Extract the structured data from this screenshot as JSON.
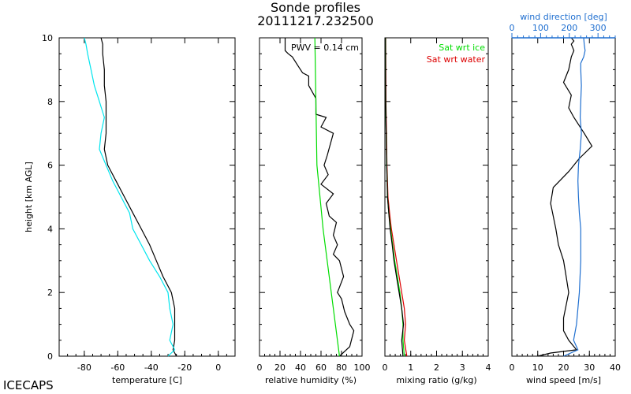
{
  "title": "Sonde profiles",
  "subtitle": "20111217.232500",
  "footer_label": "ICECAPS",
  "colors": {
    "black": "#000000",
    "cyan": "#00e5ee",
    "green": "#00dd00",
    "red": "#dd0000",
    "yellow": "#ffff00",
    "blue": "#1f6fd0"
  },
  "chart_data": [
    {
      "type": "line",
      "xlabel": "temperature [C]",
      "ylabel": "height [km AGL]",
      "xlim": [
        -95,
        10
      ],
      "ylim": [
        0,
        10
      ],
      "xticks": [
        -80,
        -60,
        -40,
        -20,
        0
      ],
      "yticks": [
        0,
        2,
        4,
        6,
        8,
        10
      ],
      "series": [
        {
          "color": "#000000",
          "x": [
            -25,
            -27,
            -26,
            -26,
            -26,
            -28,
            -33,
            -37,
            -41,
            -46,
            -51,
            -56,
            -61,
            -66,
            -68,
            -67,
            -67,
            -67,
            -68,
            -68,
            -69,
            -69,
            -70
          ],
          "y": [
            0,
            0.2,
            0.5,
            1.0,
            1.5,
            2.0,
            2.5,
            3.0,
            3.5,
            4.0,
            4.5,
            5.0,
            5.5,
            6.0,
            6.5,
            7.0,
            7.5,
            8.0,
            8.5,
            9.0,
            9.5,
            9.8,
            10.0
          ]
        },
        {
          "color": "#00e5ee",
          "x": [
            -30,
            -26,
            -29,
            -27,
            -29,
            -30,
            -35,
            -41,
            -46,
            -51,
            -53,
            -58,
            -63,
            -67,
            -71,
            -70,
            -68,
            -71,
            -74,
            -76,
            -78,
            -79,
            -80
          ],
          "y": [
            0,
            0.2,
            0.5,
            1.0,
            1.5,
            2.0,
            2.5,
            3.0,
            3.5,
            4.0,
            4.5,
            5.0,
            5.5,
            6.0,
            6.5,
            7.0,
            7.5,
            8.0,
            8.5,
            9.0,
            9.5,
            9.8,
            10.0
          ]
        }
      ]
    },
    {
      "type": "line",
      "xlabel": "relative humidity (%)",
      "xlim": [
        0,
        100
      ],
      "ylim": [
        0,
        10
      ],
      "xticks": [
        0,
        20,
        40,
        60,
        80,
        100
      ],
      "annotation": "PWV = 0.14 cm",
      "series": [
        {
          "color": "#000000",
          "x": [
            78,
            88,
            92,
            88,
            83,
            80,
            76,
            82,
            78,
            72,
            76,
            72,
            75,
            68,
            65,
            72,
            60,
            67,
            63,
            66,
            72,
            60,
            65,
            55,
            55,
            55,
            48,
            48,
            42,
            38,
            32,
            28,
            25,
            25,
            25
          ],
          "y": [
            0,
            0.3,
            0.8,
            1.0,
            1.4,
            1.8,
            2.0,
            2.5,
            3.0,
            3.2,
            3.5,
            3.8,
            4.2,
            4.4,
            4.8,
            5.1,
            5.4,
            5.7,
            6.0,
            6.3,
            7.0,
            7.2,
            7.5,
            7.6,
            7.9,
            8.1,
            8.5,
            8.8,
            8.9,
            9.1,
            9.4,
            9.5,
            9.6,
            9.8,
            10.0
          ]
        },
        {
          "color": "#00dd00",
          "x": [
            78,
            74,
            70,
            66,
            62,
            59,
            56,
            55,
            54
          ],
          "y": [
            0,
            1,
            2,
            3,
            4,
            5,
            6,
            8,
            10
          ]
        }
      ]
    },
    {
      "type": "line",
      "xlabel": "mixing ratio (g/kg)",
      "xlim": [
        0,
        4
      ],
      "ylim": [
        0,
        10
      ],
      "xticks": [
        0,
        1,
        2,
        3,
        4
      ],
      "legend": [
        "Sat wrt ice",
        "Sat wrt water"
      ],
      "series": [
        {
          "name": "Sat wrt water",
          "color": "#dd0000",
          "x": [
            0.85,
            0.75,
            0.8,
            0.75,
            0.65,
            0.55,
            0.45,
            0.35,
            0.25,
            0.18,
            0.12,
            0.08,
            0.06,
            0.04,
            0.03
          ],
          "y": [
            0,
            0.5,
            1.0,
            1.5,
            2.0,
            2.5,
            3.0,
            3.5,
            4.0,
            4.5,
            5.0,
            6.0,
            7.0,
            8.0,
            10.0
          ]
        },
        {
          "name": "Sat wrt ice",
          "color": "#00dd00",
          "x": [
            0.75,
            0.7,
            0.7,
            0.65,
            0.58,
            0.48,
            0.38,
            0.3,
            0.22,
            0.15,
            0.1,
            0.07,
            0.05,
            0.03,
            0.02
          ],
          "y": [
            0,
            0.5,
            1.0,
            1.5,
            2.0,
            2.5,
            3.0,
            3.5,
            4.0,
            4.5,
            5.0,
            6.0,
            7.0,
            8.0,
            10.0
          ]
        },
        {
          "color": "#000000",
          "x": [
            0.7,
            0.65,
            0.72,
            0.65,
            0.55,
            0.45,
            0.35,
            0.28,
            0.2,
            0.15,
            0.1,
            0.07,
            0.05,
            0.03,
            0.02
          ],
          "y": [
            0,
            0.5,
            1.0,
            1.5,
            2.0,
            2.5,
            3.0,
            3.5,
            4.0,
            4.5,
            5.0,
            6.0,
            7.0,
            8.0,
            10.0
          ]
        }
      ]
    },
    {
      "type": "line",
      "xlabel": "wind speed [m/s]",
      "xlim": [
        0,
        40
      ],
      "ylim": [
        0,
        10
      ],
      "xticks": [
        0,
        10,
        20,
        30,
        40
      ],
      "x2label": "wind direction [deg]",
      "x2lim": [
        0,
        360
      ],
      "x2ticks": [
        0,
        100,
        200,
        300
      ],
      "series": [
        {
          "color": "#000000",
          "x": [
            10,
            15,
            25,
            22,
            20,
            20,
            22,
            21,
            20,
            18,
            17,
            15,
            16,
            22,
            26,
            31,
            28,
            24,
            22,
            23,
            20,
            22,
            23,
            24,
            23,
            24,
            23
          ],
          "y": [
            0,
            0.1,
            0.2,
            0.5,
            0.8,
            1.2,
            2.0,
            2.5,
            3.0,
            3.5,
            4.0,
            4.8,
            5.3,
            5.8,
            6.2,
            6.6,
            7.0,
            7.5,
            7.8,
            8.2,
            8.6,
            9.0,
            9.4,
            9.6,
            9.8,
            9.9,
            10.0
          ]
        },
        {
          "color": "#1f6fd0",
          "x": [
            180,
            230,
            215,
            225,
            235,
            240,
            240,
            235,
            232,
            230,
            232,
            238,
            242,
            238,
            240,
            242,
            240,
            240,
            250,
            255,
            252,
            250
          ],
          "y": [
            0,
            0.2,
            0.5,
            1.0,
            2.0,
            3.0,
            4.0,
            4.5,
            5.0,
            5.5,
            6.0,
            6.5,
            7.0,
            7.5,
            8.0,
            8.5,
            9.0,
            9.2,
            9.4,
            9.6,
            9.8,
            10.0
          ]
        }
      ]
    }
  ]
}
